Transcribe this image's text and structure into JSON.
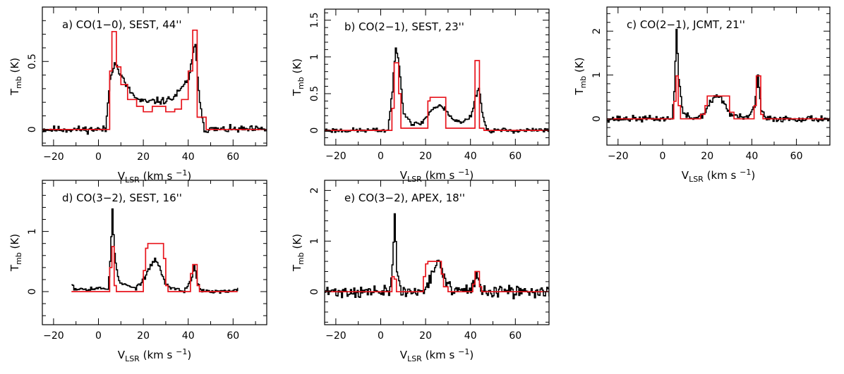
{
  "figure": {
    "colors": {
      "observed": "#000000",
      "model": "#e8141c",
      "axes": "#000000"
    },
    "units": {
      "x_main": "V",
      "x_sub": "LSR",
      "x_unit": "(km s",
      "x_exp": "−1",
      "x_close": ")",
      "y_main": "T",
      "y_sub": "mb",
      "y_unit": " (K)"
    }
  },
  "chart_data": [
    {
      "type": "line",
      "title": "a) CO(1−0), SEST, 44''",
      "xlabel": "VLSR (km s−1)",
      "ylabel": "Tmb (K)",
      "xlim": [
        -25,
        75
      ],
      "ylim": [
        -0.12,
        0.9
      ],
      "xticks": [
        -20,
        0,
        20,
        40,
        60
      ],
      "xticklabels": [
        "−20",
        "0",
        "20",
        "40",
        "60"
      ],
      "yticks": [
        0,
        0.5
      ],
      "yticklabels": [
        "0",
        "0.5"
      ],
      "noise": 0.022,
      "obs_range": [
        -25,
        75
      ],
      "seed": 11,
      "observed_profile": [
        [
          -25,
          0
        ],
        [
          3,
          0
        ],
        [
          5,
          0.38
        ],
        [
          7,
          0.5
        ],
        [
          9,
          0.42
        ],
        [
          13,
          0.3
        ],
        [
          17,
          0.22
        ],
        [
          21,
          0.2
        ],
        [
          25,
          0.21
        ],
        [
          29,
          0.21
        ],
        [
          33,
          0.23
        ],
        [
          37,
          0.3
        ],
        [
          40,
          0.38
        ],
        [
          42,
          0.55
        ],
        [
          43,
          0.62
        ],
        [
          45,
          0.2
        ],
        [
          47,
          0
        ],
        [
          75,
          0
        ]
      ],
      "model_steps": [
        [
          -25,
          0
        ],
        [
          4,
          0
        ],
        [
          5,
          0.43
        ],
        [
          6,
          0.72
        ],
        [
          8,
          0.46
        ],
        [
          10,
          0.33
        ],
        [
          13,
          0.22
        ],
        [
          17,
          0.17
        ],
        [
          20,
          0.13
        ],
        [
          24,
          0.17
        ],
        [
          30,
          0.13
        ],
        [
          34,
          0.15
        ],
        [
          37,
          0.22
        ],
        [
          40,
          0.43
        ],
        [
          42,
          0.73
        ],
        [
          44,
          0.09
        ],
        [
          45,
          0.09
        ],
        [
          48,
          0
        ],
        [
          75,
          0
        ]
      ]
    },
    {
      "type": "line",
      "title": "b) CO(2−1), SEST, 23''",
      "xlabel": "VLSR (km s−1)",
      "ylabel": "Tmb (K)",
      "xlim": [
        -25,
        75
      ],
      "ylim": [
        -0.2,
        1.65
      ],
      "xticks": [
        -20,
        0,
        20,
        40,
        60
      ],
      "xticklabels": [
        "−20",
        "0",
        "20",
        "40",
        "60"
      ],
      "yticks": [
        0,
        0.5,
        1,
        1.5
      ],
      "yticklabels": [
        "0",
        "0.5",
        "1",
        "1.5"
      ],
      "noise": 0.028,
      "obs_range": [
        -25,
        75
      ],
      "seed": 23,
      "observed_profile": [
        [
          -25,
          0
        ],
        [
          3,
          0
        ],
        [
          5,
          0.55
        ],
        [
          6.5,
          1.12
        ],
        [
          8,
          0.9
        ],
        [
          10,
          0.25
        ],
        [
          14,
          0.08
        ],
        [
          18,
          0.1
        ],
        [
          21,
          0.22
        ],
        [
          23,
          0.3
        ],
        [
          26,
          0.33
        ],
        [
          29,
          0.28
        ],
        [
          32,
          0.15
        ],
        [
          36,
          0.1
        ],
        [
          40,
          0.2
        ],
        [
          42,
          0.45
        ],
        [
          43.5,
          0.6
        ],
        [
          45,
          0.25
        ],
        [
          47,
          0
        ],
        [
          75,
          0
        ]
      ],
      "model_steps": [
        [
          -25,
          0
        ],
        [
          4,
          0
        ],
        [
          5,
          0.3
        ],
        [
          6,
          0.92
        ],
        [
          8,
          0.5
        ],
        [
          9,
          0.03
        ],
        [
          20,
          0.03
        ],
        [
          21,
          0.4
        ],
        [
          22,
          0.45
        ],
        [
          28,
          0.45
        ],
        [
          29,
          0.03
        ],
        [
          41,
          0.03
        ],
        [
          42,
          0.95
        ],
        [
          43,
          0.95
        ],
        [
          44,
          0.03
        ],
        [
          46,
          0
        ],
        [
          75,
          0
        ]
      ]
    },
    {
      "type": "line",
      "title": "c) CO(2−1), JCMT, 21''",
      "xlabel": "VLSR (km s−1)",
      "ylabel": "Tmb (K)",
      "xlim": [
        -25,
        75
      ],
      "ylim": [
        -0.6,
        2.55
      ],
      "xticks": [
        -20,
        0,
        20,
        40,
        60
      ],
      "xticklabels": [
        "−20",
        "0",
        "20",
        "40",
        "60"
      ],
      "yticks": [
        0,
        1,
        2
      ],
      "yticklabels": [
        "0",
        "1",
        "2"
      ],
      "noise": 0.06,
      "obs_range": [
        -25,
        75
      ],
      "seed": 37,
      "observed_profile": [
        [
          -25,
          0
        ],
        [
          4,
          0
        ],
        [
          5,
          0.6
        ],
        [
          6,
          2.1
        ],
        [
          7,
          0.9
        ],
        [
          9,
          0.1
        ],
        [
          14,
          0
        ],
        [
          18,
          0.1
        ],
        [
          21,
          0.35
        ],
        [
          24,
          0.55
        ],
        [
          27,
          0.4
        ],
        [
          30,
          0.1
        ],
        [
          38,
          0
        ],
        [
          41,
          0.3
        ],
        [
          42.5,
          0.95
        ],
        [
          44,
          0.2
        ],
        [
          46,
          0
        ],
        [
          75,
          0
        ]
      ],
      "model_steps": [
        [
          -25,
          0
        ],
        [
          4,
          0
        ],
        [
          5,
          0.4
        ],
        [
          6,
          0.98
        ],
        [
          7,
          0.3
        ],
        [
          8,
          0
        ],
        [
          14,
          0
        ],
        [
          17,
          0.1
        ],
        [
          19,
          0.3
        ],
        [
          20,
          0.52
        ],
        [
          29,
          0.52
        ],
        [
          30,
          0.15
        ],
        [
          32,
          0
        ],
        [
          40,
          0
        ],
        [
          41,
          0.3
        ],
        [
          42,
          0.98
        ],
        [
          44,
          0.1
        ],
        [
          45,
          0
        ],
        [
          75,
          0
        ]
      ]
    },
    {
      "type": "line",
      "title": "d) CO(3−2), SEST, 16''",
      "xlabel": "VLSR (km s−1)",
      "ylabel": "Tmb (K)",
      "xlim": [
        -25,
        75
      ],
      "ylim": [
        -0.55,
        1.85
      ],
      "xticks": [
        -20,
        0,
        20,
        40,
        60
      ],
      "xticklabels": [
        "−20",
        "0",
        "20",
        "40",
        "60"
      ],
      "yticks": [
        0,
        1
      ],
      "yticklabels": [
        "0",
        "1"
      ],
      "noise": 0.03,
      "obs_range": [
        -12,
        62
      ],
      "seed": 53,
      "observed_profile": [
        [
          -12,
          0.15
        ],
        [
          -11,
          0.05
        ],
        [
          4,
          0.05
        ],
        [
          5,
          0.5
        ],
        [
          6,
          1.35
        ],
        [
          7,
          0.6
        ],
        [
          9,
          0.15
        ],
        [
          16,
          0.05
        ],
        [
          20,
          0.2
        ],
        [
          23,
          0.42
        ],
        [
          25,
          0.55
        ],
        [
          27,
          0.4
        ],
        [
          30,
          0.1
        ],
        [
          38,
          0
        ],
        [
          41,
          0.2
        ],
        [
          42.5,
          0.42
        ],
        [
          44,
          0.15
        ],
        [
          46,
          0
        ],
        [
          60,
          0
        ],
        [
          62,
          0.05
        ]
      ],
      "model_steps": [
        [
          -12,
          0
        ],
        [
          4,
          0
        ],
        [
          5,
          0.4
        ],
        [
          6,
          0.75
        ],
        [
          7,
          0.1
        ],
        [
          8,
          0
        ],
        [
          18,
          0
        ],
        [
          20,
          0.35
        ],
        [
          21,
          0.72
        ],
        [
          22,
          0.8
        ],
        [
          28,
          0.8
        ],
        [
          29,
          0.55
        ],
        [
          30,
          0.1
        ],
        [
          31,
          0
        ],
        [
          40,
          0
        ],
        [
          41,
          0.3
        ],
        [
          42,
          0.45
        ],
        [
          44,
          0.1
        ],
        [
          45,
          0
        ],
        [
          62,
          0
        ]
      ]
    },
    {
      "type": "line",
      "title": "e) CO(3−2), APEX, 18''",
      "xlabel": "VLSR (km s−1)",
      "ylabel": "Tmb (K)",
      "xlim": [
        -25,
        75
      ],
      "ylim": [
        -0.65,
        2.2
      ],
      "xticks": [
        -20,
        0,
        20,
        40,
        60
      ],
      "xticklabels": [
        "−20",
        "0",
        "20",
        "40",
        "60"
      ],
      "yticks": [
        0,
        1,
        2
      ],
      "yticklabels": [
        "0",
        "1",
        "2"
      ],
      "noise": 0.1,
      "obs_range": [
        -25,
        75
      ],
      "seed": 71,
      "observed_profile": [
        [
          -25,
          0
        ],
        [
          4,
          0
        ],
        [
          5,
          0.6
        ],
        [
          6,
          1.45
        ],
        [
          7,
          0.4
        ],
        [
          9,
          0
        ],
        [
          18,
          0
        ],
        [
          21,
          0.2
        ],
        [
          24,
          0.5
        ],
        [
          26,
          0.55
        ],
        [
          28,
          0.3
        ],
        [
          31,
          0.05
        ],
        [
          40,
          0
        ],
        [
          42,
          0.3
        ],
        [
          43.5,
          0.25
        ],
        [
          45,
          0
        ],
        [
          75,
          0
        ]
      ],
      "model_steps": [
        [
          -25,
          0
        ],
        [
          4,
          0
        ],
        [
          5,
          0.3
        ],
        [
          6,
          0.25
        ],
        [
          7,
          0
        ],
        [
          18,
          0
        ],
        [
          19,
          0.3
        ],
        [
          20,
          0.55
        ],
        [
          21,
          0.6
        ],
        [
          26,
          0.6
        ],
        [
          27,
          0.35
        ],
        [
          28,
          0.1
        ],
        [
          30,
          0
        ],
        [
          40,
          0
        ],
        [
          41,
          0.15
        ],
        [
          42,
          0.4
        ],
        [
          43,
          0.4
        ],
        [
          44,
          0.1
        ],
        [
          45,
          0
        ],
        [
          75,
          0
        ]
      ]
    }
  ]
}
